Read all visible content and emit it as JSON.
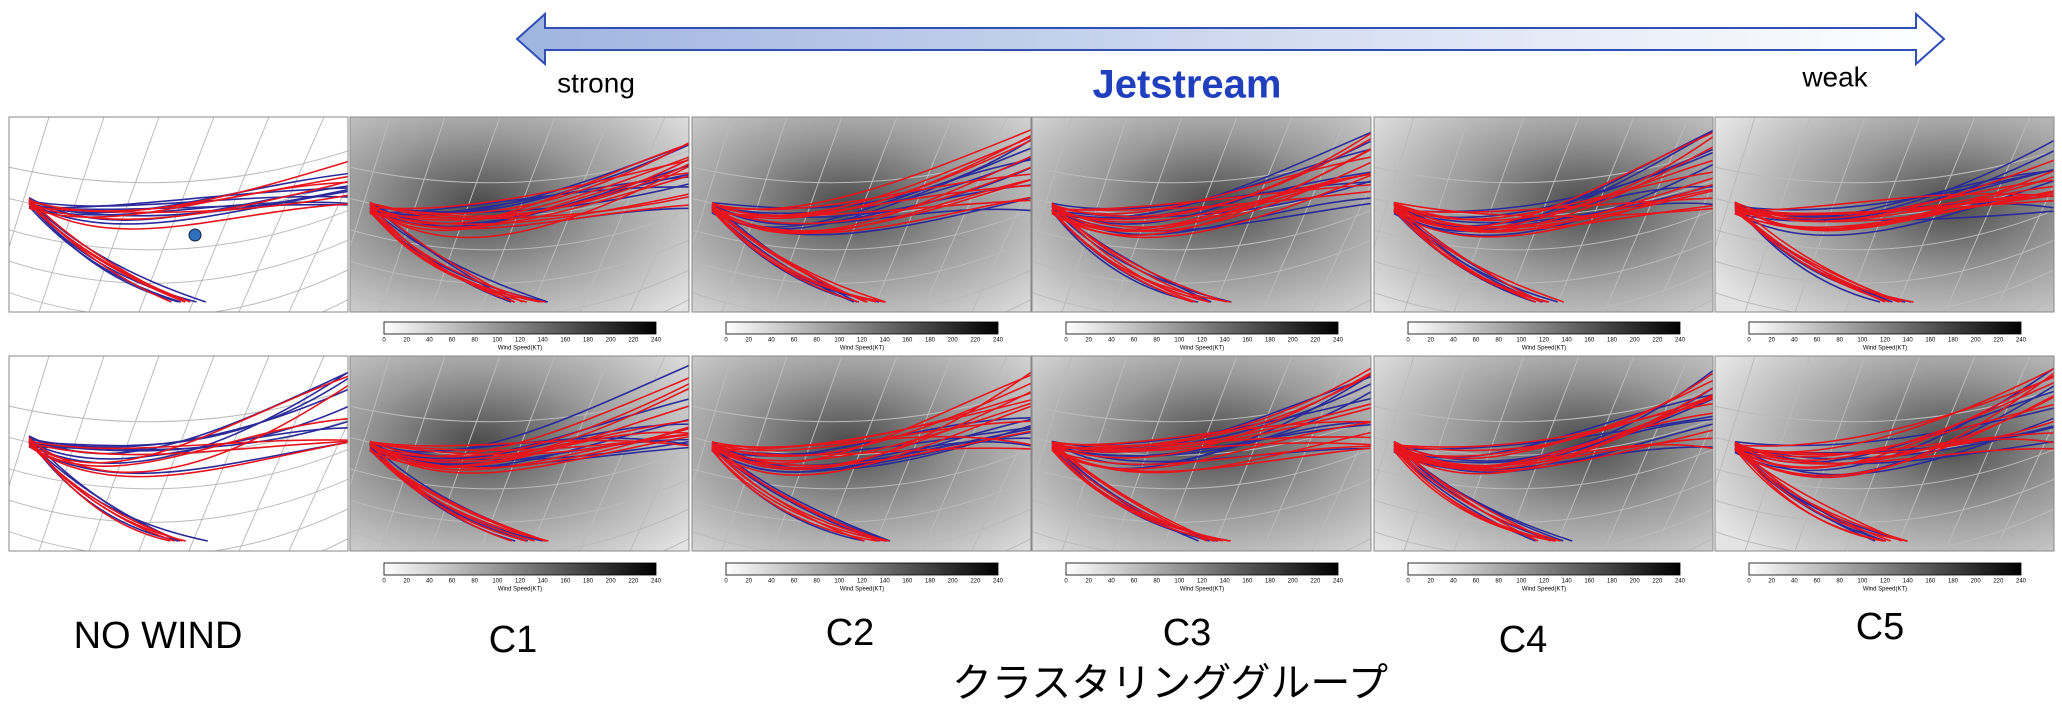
{
  "header": {
    "left": "strong",
    "title": "Jetstream",
    "right": "weak"
  },
  "colorbar": {
    "ticks": [
      "0",
      "20",
      "40",
      "60",
      "80",
      "100",
      "120",
      "140",
      "160",
      "180",
      "200",
      "220",
      "240"
    ],
    "label": "Wind Speed(KT)"
  },
  "panels": [
    {
      "label": "NO WIND"
    },
    {
      "label": "C1"
    },
    {
      "label": "C2"
    },
    {
      "label": "C3"
    },
    {
      "label": "C4"
    },
    {
      "label": "C5"
    }
  ],
  "footer": "クラスタリンググループ"
}
